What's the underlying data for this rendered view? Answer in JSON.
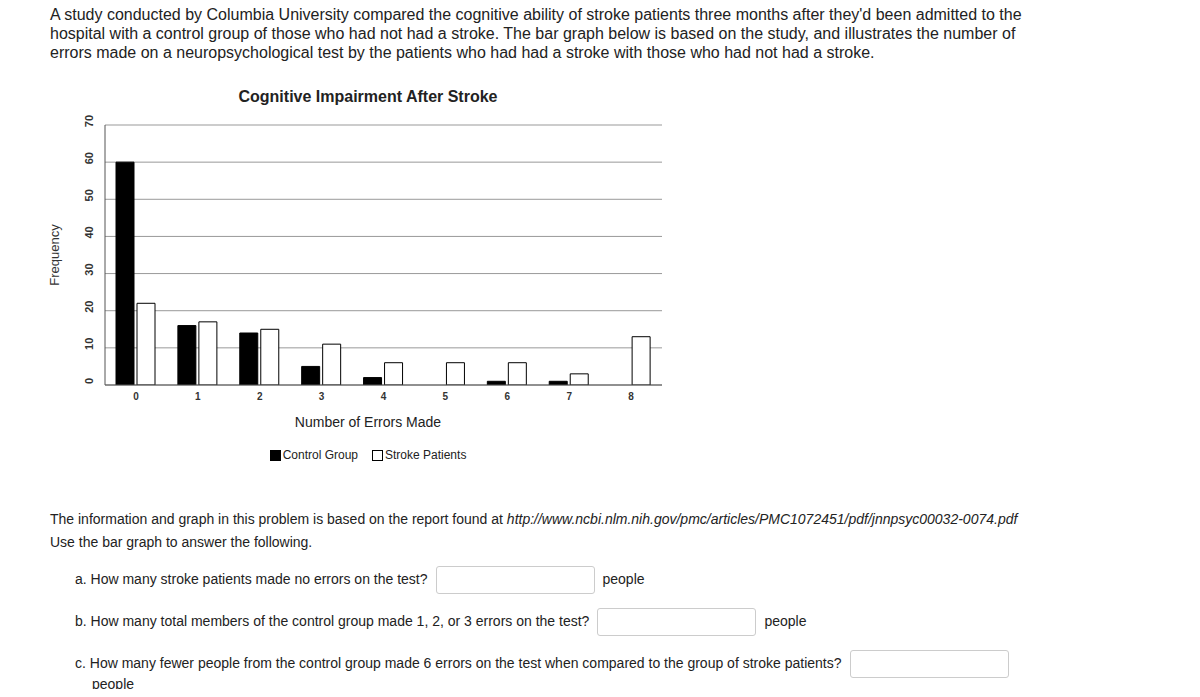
{
  "intro": "A study conducted by Columbia University compared the cognitive ability of stroke patients three months after they'd been admitted to the hospital with a control group of those who had not had a stroke.  The bar graph below is based on the study, and illustrates the number of errors made on a neuropsychological test by the patients who had had a stroke with those who had not had a stroke.",
  "chart_data": {
    "type": "bar",
    "title": "Cognitive Impairment After Stroke",
    "x_label": "Number of Errors Made",
    "y_label": "Frequency",
    "categories": [
      "0",
      "1",
      "2",
      "3",
      "4",
      "5",
      "6",
      "7",
      "8"
    ],
    "series": [
      {
        "name": "Control Group",
        "color": "#000000",
        "values": [
          60,
          16,
          14,
          5,
          2,
          0,
          1,
          1,
          0
        ]
      },
      {
        "name": "Stroke Patients",
        "color": "#ffffff",
        "values": [
          22,
          17,
          15,
          11,
          6,
          6,
          6,
          3,
          13
        ]
      }
    ],
    "ylim": [
      0,
      70
    ],
    "yticks": [
      0,
      10,
      20,
      30,
      40,
      50,
      60,
      70
    ],
    "grid": true,
    "legend": "bottom"
  },
  "source_text": "The information and graph in this problem is based on the report found at ",
  "source_url": "http://www.ncbi.nlm.nih.gov/pmc/articles/PMC1072451/pdf/jnnpsyc00032-0074.pdf",
  "instruction": "Use the bar graph to answer the following.",
  "questions": [
    {
      "text": "a. How many stroke patients made no errors on the test?",
      "unit": "people"
    },
    {
      "text": "b. How many total members of the control group made 1, 2, or 3 errors on the test?",
      "unit": "people"
    },
    {
      "text": "c. How many fewer people from the control group made 6 errors on the test when compared to the group of stroke patients?",
      "unit": "people"
    }
  ]
}
